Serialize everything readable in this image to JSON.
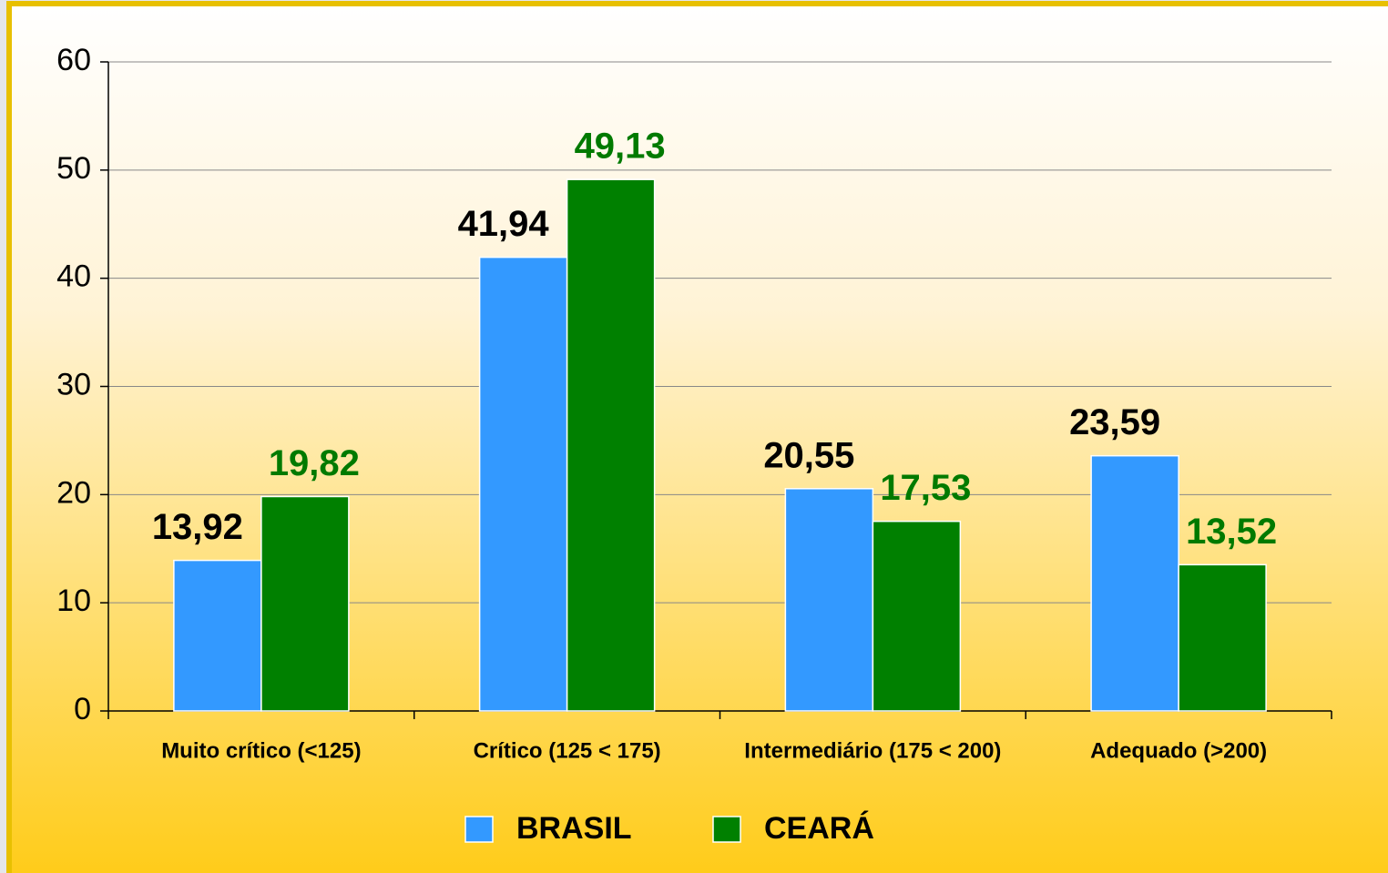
{
  "chart_data": {
    "type": "bar",
    "categories": [
      "Muito crítico (<125)",
      "Crítico (125 < 175)",
      "Intermediário (175 < 200)",
      "Adequado (>200)"
    ],
    "series": [
      {
        "name": "BRASIL",
        "color": "#3399ff",
        "label_color": "#000000",
        "values": [
          13.92,
          41.94,
          20.55,
          23.59
        ],
        "value_labels": [
          "13,92",
          "41,94",
          "20,55",
          "23,59"
        ]
      },
      {
        "name": "CEARÁ",
        "color": "#008000",
        "label_color": "#007a00",
        "values": [
          19.82,
          49.13,
          17.53,
          13.52
        ],
        "value_labels": [
          "19,82",
          "49,13",
          "17,53",
          "13,52"
        ]
      }
    ],
    "ylim": [
      0,
      60
    ],
    "yticks": [
      0,
      10,
      20,
      30,
      40,
      50,
      60
    ],
    "grid": true,
    "legend": "bottom"
  }
}
